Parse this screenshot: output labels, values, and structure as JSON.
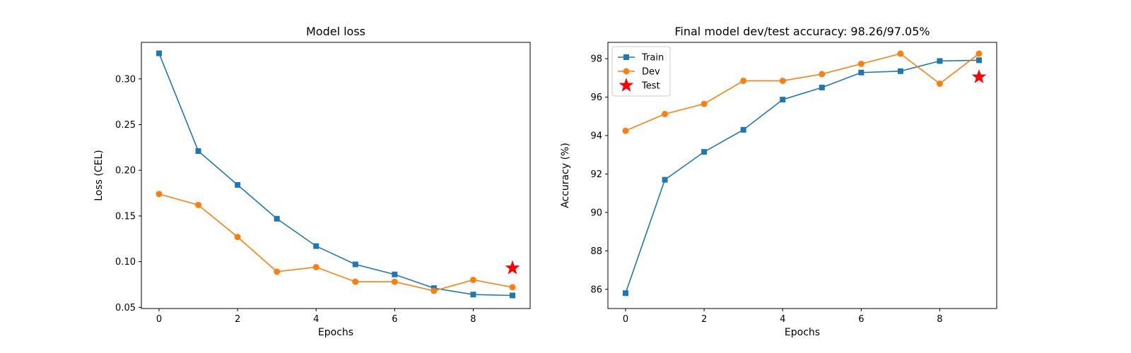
{
  "chart_data": [
    {
      "type": "line",
      "title": "Model loss",
      "xlabel": "Epochs",
      "ylabel": "Loss (CEL)",
      "xlim": [
        -0.45,
        9.45
      ],
      "ylim": [
        0.0487,
        0.34
      ],
      "xticks": [
        0,
        2,
        4,
        6,
        8
      ],
      "yticks": [
        0.05,
        0.1,
        0.15,
        0.2,
        0.25,
        0.3
      ],
      "ytick_labels": [
        "0.05",
        "0.10",
        "0.15",
        "0.20",
        "0.25",
        "0.30"
      ],
      "grid": false,
      "legend": null,
      "series": [
        {
          "key": "train",
          "color": "#1f77b4",
          "marker": "square",
          "x": [
            0,
            1,
            2,
            3,
            4,
            5,
            6,
            7,
            8,
            9
          ],
          "values": [
            0.328,
            0.221,
            0.184,
            0.147,
            0.117,
            0.097,
            0.086,
            0.071,
            0.064,
            0.063
          ]
        },
        {
          "key": "dev",
          "color": "#ff7f0e",
          "marker": "circle",
          "x": [
            0,
            1,
            2,
            3,
            4,
            5,
            6,
            7,
            8,
            9
          ],
          "values": [
            0.174,
            0.162,
            0.127,
            0.089,
            0.094,
            0.078,
            0.078,
            0.068,
            0.08,
            0.072
          ]
        },
        {
          "key": "test",
          "color": "#ff0000",
          "marker": "star",
          "x": [
            9
          ],
          "values": [
            0.093
          ]
        }
      ]
    },
    {
      "type": "line",
      "title": "Final model dev/test accuracy: 98.26/97.05%",
      "xlabel": "Epochs",
      "ylabel": "Accuracy (%)",
      "xlim": [
        -0.45,
        9.45
      ],
      "ylim": [
        85.0,
        98.85
      ],
      "xticks": [
        0,
        2,
        4,
        6,
        8
      ],
      "yticks": [
        86,
        88,
        90,
        92,
        94,
        96,
        98
      ],
      "ytick_labels": [
        "86",
        "88",
        "90",
        "92",
        "94",
        "96",
        "98"
      ],
      "grid": false,
      "legend": "upper-left",
      "series": [
        {
          "key": "train",
          "name": "Train",
          "color": "#1f77b4",
          "marker": "square",
          "x": [
            0,
            1,
            2,
            3,
            4,
            5,
            6,
            7,
            8,
            9
          ],
          "values": [
            85.8,
            91.7,
            93.15,
            94.3,
            95.87,
            96.5,
            97.28,
            97.35,
            97.88,
            97.92
          ]
        },
        {
          "key": "dev",
          "name": "Dev",
          "color": "#ff7f0e",
          "marker": "circle",
          "x": [
            0,
            1,
            2,
            3,
            4,
            5,
            6,
            7,
            8,
            9
          ],
          "values": [
            94.25,
            95.12,
            95.65,
            96.85,
            96.85,
            97.2,
            97.73,
            98.26,
            96.7,
            98.26
          ]
        },
        {
          "key": "test",
          "name": "Test",
          "color": "#ff0000",
          "marker": "star",
          "x": [
            9
          ],
          "values": [
            97.05
          ]
        }
      ]
    }
  ]
}
